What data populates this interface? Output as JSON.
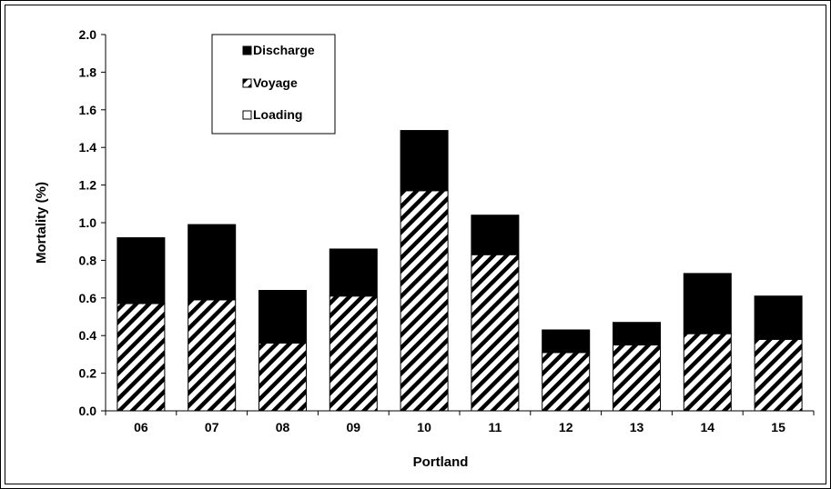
{
  "chart_data": {
    "type": "bar",
    "stacked": true,
    "categories": [
      "06",
      "07",
      "08",
      "09",
      "10",
      "11",
      "12",
      "13",
      "14",
      "15"
    ],
    "series": [
      {
        "name": "Loading",
        "values": [
          0.0,
          0.0,
          0.0,
          0.0,
          0.0,
          0.0,
          0.0,
          0.0,
          0.0,
          0.0
        ],
        "fill": "white"
      },
      {
        "name": "Voyage",
        "values": [
          0.57,
          0.59,
          0.36,
          0.61,
          1.17,
          0.83,
          0.31,
          0.35,
          0.41,
          0.38
        ],
        "fill": "hatch"
      },
      {
        "name": "Discharge",
        "values": [
          0.35,
          0.4,
          0.28,
          0.25,
          0.32,
          0.21,
          0.12,
          0.12,
          0.32,
          0.23
        ],
        "fill": "black"
      }
    ],
    "legend_order": [
      "Discharge",
      "Voyage",
      "Loading"
    ],
    "xlabel": "Portland",
    "ylabel": "Mortality (%)",
    "ylim": [
      0,
      2.0
    ],
    "yticks": [
      "0.0",
      "0.2",
      "0.4",
      "0.6",
      "0.8",
      "1.0",
      "1.2",
      "1.4",
      "1.6",
      "1.8",
      "2.0"
    ],
    "grid": false,
    "legend_position": "top-left",
    "colors": {
      "discharge": "#000000",
      "hatch": "#000000",
      "background": "#ffffff"
    }
  }
}
